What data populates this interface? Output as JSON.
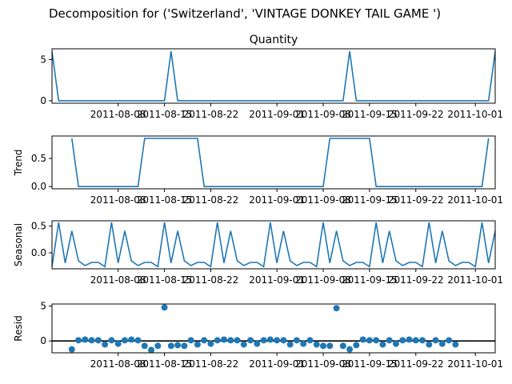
{
  "suptitle": "Decomposition for ('Switzerland', 'VINTAGE DONKEY TAIL GAME ')",
  "colors": {
    "line": "#1f77b4",
    "zero_line": "#000000",
    "axes": "#000000",
    "background": "#ffffff"
  },
  "chart_data": [
    {
      "type": "line",
      "title": "Quantity",
      "ylabel": "",
      "xlabel": "",
      "x_start": "2011-07-29",
      "x_end": "2011-10-04",
      "ylim": [
        -0.3,
        6.3
      ],
      "yticks": [
        0,
        5
      ],
      "xticks": [
        "2011-08-08",
        "2011-08-15",
        "2011-08-22",
        "2011-09-01",
        "2011-09-08",
        "2011-09-15",
        "2011-09-22",
        "2011-10-01"
      ],
      "grid": false,
      "series": [
        {
          "points": [
            [
              "2011-07-29",
              6
            ],
            [
              "2011-07-30",
              0
            ],
            [
              "2011-08-15",
              0
            ],
            [
              "2011-08-16",
              6
            ],
            [
              "2011-08-17",
              0
            ],
            [
              "2011-09-11",
              0
            ],
            [
              "2011-09-12",
              6
            ],
            [
              "2011-09-13",
              0
            ],
            [
              "2011-10-03",
              0
            ],
            [
              "2011-10-04",
              6
            ]
          ]
        }
      ]
    },
    {
      "type": "line",
      "title": "",
      "ylabel": "Trend",
      "xlabel": "",
      "x_start": "2011-07-29",
      "x_end": "2011-10-04",
      "ylim": [
        -0.04,
        0.9
      ],
      "yticks": [
        0.0,
        0.5
      ],
      "xticks": [
        "2011-08-08",
        "2011-08-15",
        "2011-08-22",
        "2011-09-01",
        "2011-09-08",
        "2011-09-15",
        "2011-09-22",
        "2011-10-01"
      ],
      "grid": false,
      "series": [
        {
          "points": [
            [
              "2011-08-01",
              0.857
            ],
            [
              "2011-08-02",
              0
            ],
            [
              "2011-08-11",
              0
            ],
            [
              "2011-08-12",
              0.857
            ],
            [
              "2011-08-20",
              0.857
            ],
            [
              "2011-08-21",
              0
            ],
            [
              "2011-09-08",
              0
            ],
            [
              "2011-09-09",
              0.857
            ],
            [
              "2011-09-15",
              0.857
            ],
            [
              "2011-09-16",
              0
            ],
            [
              "2011-10-02",
              0
            ],
            [
              "2011-10-03",
              0.857
            ]
          ]
        }
      ]
    },
    {
      "type": "line",
      "title": "",
      "ylabel": "Seasonal",
      "xlabel": "",
      "x_start": "2011-07-29",
      "x_end": "2011-10-04",
      "ylim": [
        -0.3,
        0.6
      ],
      "yticks": [
        0.0,
        0.5
      ],
      "xticks": [
        "2011-08-08",
        "2011-08-15",
        "2011-08-22",
        "2011-09-01",
        "2011-09-08",
        "2011-09-15",
        "2011-09-22",
        "2011-10-01"
      ],
      "grid": false,
      "series": [
        {
          "start": "2011-07-29",
          "period_values": [
            -0.26,
            0.57,
            -0.19,
            0.41,
            -0.15,
            -0.24,
            -0.18,
            -0.18
          ],
          "y_first": -0.26,
          "n": 68
        }
      ]
    },
    {
      "type": "scatter",
      "title": "",
      "ylabel": "Resid",
      "xlabel": "",
      "x_start": "2011-07-29",
      "x_end": "2011-10-04",
      "ylim": [
        -1.7,
        5.3
      ],
      "yticks": [
        0,
        5
      ],
      "xticks": [
        "2011-08-08",
        "2011-08-15",
        "2011-08-22",
        "2011-09-01",
        "2011-09-08",
        "2011-09-15",
        "2011-09-22",
        "2011-10-01"
      ],
      "grid": false,
      "zero_line": true,
      "series": [
        {
          "points": [
            [
              "2011-08-01",
              -1.2
            ],
            [
              "2011-08-02",
              0.1
            ],
            [
              "2011-08-03",
              0.2
            ],
            [
              "2011-08-04",
              0.1
            ],
            [
              "2011-08-05",
              0.1
            ],
            [
              "2011-08-06",
              -0.5
            ],
            [
              "2011-08-07",
              0.1
            ],
            [
              "2011-08-08",
              -0.4
            ],
            [
              "2011-08-09",
              0.1
            ],
            [
              "2011-08-10",
              0.2
            ],
            [
              "2011-08-11",
              0.1
            ],
            [
              "2011-08-12",
              -0.7
            ],
            [
              "2011-08-13",
              -1.3
            ],
            [
              "2011-08-14",
              -0.7
            ],
            [
              "2011-08-15",
              4.8
            ],
            [
              "2011-08-16",
              -0.7
            ],
            [
              "2011-08-17",
              -0.6
            ],
            [
              "2011-08-18",
              -0.7
            ],
            [
              "2011-08-19",
              0.1
            ],
            [
              "2011-08-20",
              -0.5
            ],
            [
              "2011-08-21",
              0.1
            ],
            [
              "2011-08-22",
              -0.4
            ],
            [
              "2011-08-23",
              0.1
            ],
            [
              "2011-08-24",
              0.2
            ],
            [
              "2011-08-25",
              0.1
            ],
            [
              "2011-08-26",
              0.1
            ],
            [
              "2011-08-27",
              -0.5
            ],
            [
              "2011-08-28",
              0.1
            ],
            [
              "2011-08-29",
              -0.4
            ],
            [
              "2011-08-30",
              0.1
            ],
            [
              "2011-08-31",
              0.2
            ],
            [
              "2011-09-01",
              0.1
            ],
            [
              "2011-09-02",
              0.1
            ],
            [
              "2011-09-03",
              -0.5
            ],
            [
              "2011-09-04",
              0.1
            ],
            [
              "2011-09-05",
              -0.4
            ],
            [
              "2011-09-06",
              0.1
            ],
            [
              "2011-09-07",
              -0.5
            ],
            [
              "2011-09-08",
              -0.7
            ],
            [
              "2011-09-09",
              -0.7
            ],
            [
              "2011-09-10",
              4.7
            ],
            [
              "2011-09-11",
              -0.7
            ],
            [
              "2011-09-12",
              -1.2
            ],
            [
              "2011-09-13",
              -0.6
            ],
            [
              "2011-09-14",
              0.2
            ],
            [
              "2011-09-15",
              0.1
            ],
            [
              "2011-09-16",
              0.1
            ],
            [
              "2011-09-17",
              -0.5
            ],
            [
              "2011-09-18",
              0.1
            ],
            [
              "2011-09-19",
              -0.4
            ],
            [
              "2011-09-20",
              0.1
            ],
            [
              "2011-09-21",
              0.2
            ],
            [
              "2011-09-22",
              0.1
            ],
            [
              "2011-09-23",
              0.1
            ],
            [
              "2011-09-24",
              -0.5
            ],
            [
              "2011-09-25",
              0.1
            ],
            [
              "2011-09-26",
              -0.4
            ],
            [
              "2011-09-27",
              0.1
            ],
            [
              "2011-09-28",
              -0.5
            ]
          ]
        }
      ]
    }
  ]
}
